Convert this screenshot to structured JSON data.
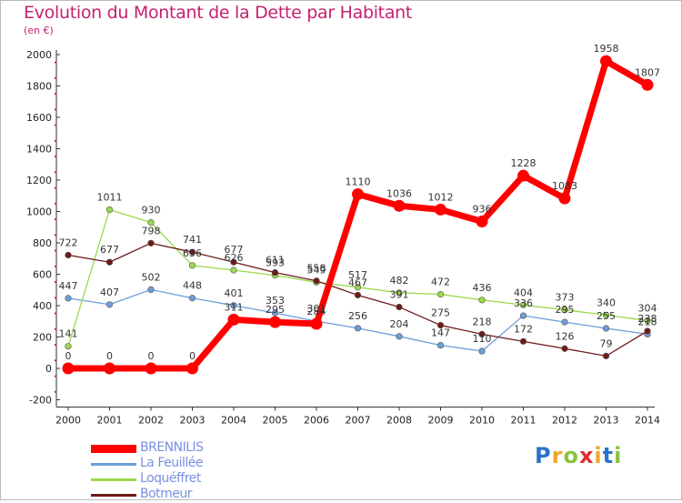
{
  "title": "Evolution du Montant de la Dette par Habitant",
  "unit_label": "(en €)",
  "logo": {
    "letters": [
      "P",
      "r",
      "o",
      "x",
      "i",
      "t",
      "i"
    ],
    "colors": [
      "#2a73c9",
      "#f0a52b",
      "#8ac33c",
      "#e02f2f",
      "#f0a52b",
      "#2a73c9",
      "#8ac33c"
    ]
  },
  "chart_data": {
    "type": "line",
    "x": [
      "2000",
      "2001",
      "2002",
      "2003",
      "2004",
      "2005",
      "2006",
      "2007",
      "2008",
      "2009",
      "2010",
      "2011",
      "2012",
      "2013",
      "2014"
    ],
    "ylim": [
      -200,
      2000
    ],
    "yticks": [
      -200,
      0,
      200,
      400,
      600,
      800,
      1000,
      1200,
      1400,
      1600,
      1800,
      2000
    ],
    "grid": false,
    "legend_position": "bottom-left",
    "series": [
      {
        "name": "BRENNILIS",
        "color": "#ff0000",
        "values": [
          0,
          0,
          0,
          0,
          311,
          295,
          284,
          1110,
          1036,
          1012,
          936,
          1228,
          1083,
          1958,
          1807
        ],
        "labels": [
          "0",
          "0",
          "0",
          "0",
          "311",
          "295",
          "284",
          "1110",
          "1036",
          "1012",
          "936",
          "1228",
          "1083",
          "1958",
          "1807"
        ]
      },
      {
        "name": "La Feuillée",
        "color": "#6e9ed8",
        "values": [
          447,
          407,
          502,
          448,
          401,
          353,
          301,
          256,
          204,
          147,
          110,
          336,
          295,
          255,
          218
        ],
        "labels": [
          "447",
          "407",
          "502",
          "448",
          "401",
          "353",
          "301",
          "256",
          "204",
          "147",
          "110",
          "336",
          "295",
          "255",
          "218"
        ]
      },
      {
        "name": "Loquéffret",
        "color": "#9ad94a",
        "values": [
          141,
          1011,
          930,
          656,
          626,
          593,
          549,
          517,
          482,
          472,
          436,
          404,
          373,
          340,
          304
        ],
        "labels": [
          "141",
          "1011",
          "930",
          "656",
          "626",
          "593",
          "549",
          "517",
          "482",
          "472",
          "436",
          "404",
          "373",
          "340",
          "304"
        ]
      },
      {
        "name": "Botmeur",
        "color": "#6e1a1a",
        "values": [
          722,
          677,
          798,
          741,
          677,
          611,
          558,
          467,
          391,
          275,
          218,
          172,
          126,
          79,
          238
        ],
        "labels": [
          "722",
          "677",
          "798",
          "741",
          "677",
          "611",
          "558",
          "467",
          "391",
          "275",
          "218",
          "172",
          "126",
          "79",
          "238"
        ]
      }
    ]
  }
}
